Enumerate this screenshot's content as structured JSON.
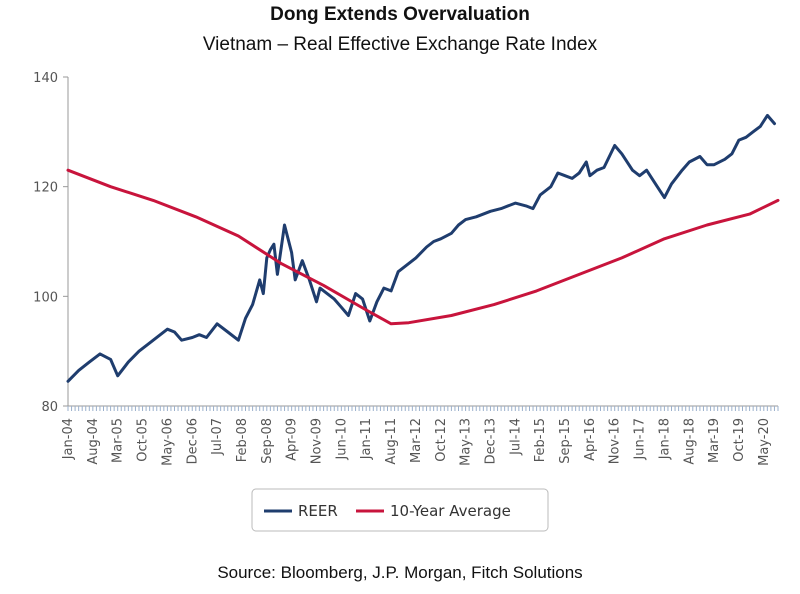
{
  "chart_data": {
    "type": "line",
    "title": "Dong Extends Overvaluation",
    "subtitle": "Vietnam – Real Effective Exchange Rate Index",
    "source": "Source: Bloomberg, J.P. Morgan, Fitch Solutions",
    "ylim": [
      80,
      140
    ],
    "yticks": [
      80,
      100,
      120,
      140
    ],
    "grid": false,
    "legend_position": "bottom-center",
    "xtick_labels": [
      "Jan-04",
      "Aug-04",
      "Mar-05",
      "Oct-05",
      "May-06",
      "Dec-06",
      "Jul-07",
      "Feb-08",
      "Sep-08",
      "Apr-09",
      "Nov-09",
      "Jun-10",
      "Jan-11",
      "Aug-11",
      "Mar-12",
      "Oct-12",
      "May-13",
      "Dec-13",
      "Jul-14",
      "Feb-15",
      "Sep-15",
      "Apr-16",
      "Nov-16",
      "Jun-17",
      "Jan-18",
      "Aug-18",
      "Mar-19",
      "Oct-19",
      "May-20"
    ],
    "series": [
      {
        "name": "REER",
        "color": "#1f3d6e",
        "points": [
          [
            "Jan-04",
            84.5
          ],
          [
            "Apr-04",
            86.5
          ],
          [
            "Jul-04",
            88
          ],
          [
            "Oct-04",
            89.5
          ],
          [
            "Jan-05",
            88.5
          ],
          [
            "Mar-05",
            85.5
          ],
          [
            "Jun-05",
            88
          ],
          [
            "Sep-05",
            90
          ],
          [
            "Dec-05",
            91.5
          ],
          [
            "Mar-06",
            93
          ],
          [
            "May-06",
            94
          ],
          [
            "Jul-06",
            93.5
          ],
          [
            "Sep-06",
            92
          ],
          [
            "Dec-06",
            92.5
          ],
          [
            "Feb-07",
            93
          ],
          [
            "Apr-07",
            92.5
          ],
          [
            "Jul-07",
            95
          ],
          [
            "Oct-07",
            93.5
          ],
          [
            "Jan-08",
            92
          ],
          [
            "Mar-08",
            96
          ],
          [
            "May-08",
            98.5
          ],
          [
            "Jul-08",
            103
          ],
          [
            "Aug-08",
            100.5
          ],
          [
            "Sep-08",
            107
          ],
          [
            "Oct-08",
            108.5
          ],
          [
            "Nov-08",
            109.5
          ],
          [
            "Dec-08",
            104
          ],
          [
            "Feb-09",
            113
          ],
          [
            "Apr-09",
            108
          ],
          [
            "May-09",
            103
          ],
          [
            "Jul-09",
            106.5
          ],
          [
            "Sep-09",
            103
          ],
          [
            "Nov-09",
            99
          ],
          [
            "Dec-09",
            101.5
          ],
          [
            "Feb-10",
            100.5
          ],
          [
            "Apr-10",
            99.5
          ],
          [
            "Jun-10",
            98
          ],
          [
            "Aug-10",
            96.5
          ],
          [
            "Oct-10",
            100.5
          ],
          [
            "Dec-10",
            99.5
          ],
          [
            "Feb-11",
            95.5
          ],
          [
            "Apr-11",
            99
          ],
          [
            "Jun-11",
            101.5
          ],
          [
            "Aug-11",
            101
          ],
          [
            "Oct-11",
            104.5
          ],
          [
            "Dec-11",
            105.5
          ],
          [
            "Mar-12",
            107
          ],
          [
            "Jun-12",
            109
          ],
          [
            "Aug-12",
            110
          ],
          [
            "Oct-12",
            110.5
          ],
          [
            "Jan-13",
            111.5
          ],
          [
            "Mar-13",
            113
          ],
          [
            "May-13",
            114
          ],
          [
            "Aug-13",
            114.5
          ],
          [
            "Dec-13",
            115.5
          ],
          [
            "Mar-14",
            116
          ],
          [
            "Jul-14",
            117
          ],
          [
            "Oct-14",
            116.5
          ],
          [
            "Dec-14",
            116
          ],
          [
            "Feb-15",
            118.5
          ],
          [
            "May-15",
            120
          ],
          [
            "Jul-15",
            122.5
          ],
          [
            "Sep-15",
            122
          ],
          [
            "Nov-15",
            121.5
          ],
          [
            "Jan-16",
            122.5
          ],
          [
            "Mar-16",
            124.5
          ],
          [
            "Apr-16",
            122
          ],
          [
            "Jun-16",
            123
          ],
          [
            "Aug-16",
            123.5
          ],
          [
            "Nov-16",
            127.5
          ],
          [
            "Jan-17",
            126
          ],
          [
            "Apr-17",
            123
          ],
          [
            "Jun-17",
            122
          ],
          [
            "Aug-17",
            123
          ],
          [
            "Nov-17",
            120
          ],
          [
            "Jan-18",
            118
          ],
          [
            "Mar-18",
            120.5
          ],
          [
            "Jun-18",
            123
          ],
          [
            "Aug-18",
            124.5
          ],
          [
            "Nov-18",
            125.5
          ],
          [
            "Jan-19",
            124
          ],
          [
            "Mar-19",
            124
          ],
          [
            "Jun-19",
            125
          ],
          [
            "Aug-19",
            126
          ],
          [
            "Oct-19",
            128.5
          ],
          [
            "Dec-19",
            129
          ],
          [
            "Feb-20",
            130
          ],
          [
            "Apr-20",
            131
          ],
          [
            "Jun-20",
            133
          ],
          [
            "Aug-20",
            131.5
          ]
        ]
      },
      {
        "name": "10-Year Average",
        "color": "#c8143c",
        "points": [
          [
            "Jan-04",
            123
          ],
          [
            "Jan-05",
            120
          ],
          [
            "Jan-06",
            117.5
          ],
          [
            "Jan-07",
            114.5
          ],
          [
            "Jan-08",
            111
          ],
          [
            "Jan-09",
            106
          ],
          [
            "Jan-10",
            102
          ],
          [
            "Jan-11",
            97.5
          ],
          [
            "Aug-11",
            95
          ],
          [
            "Jan-12",
            95.2
          ],
          [
            "Jan-13",
            96.5
          ],
          [
            "Jan-14",
            98.5
          ],
          [
            "Jan-15",
            101
          ],
          [
            "Jan-16",
            104
          ],
          [
            "Jan-17",
            107
          ],
          [
            "Jan-18",
            110.5
          ],
          [
            "Jan-19",
            113
          ],
          [
            "Jan-20",
            115
          ],
          [
            "Sep-20",
            117.5
          ]
        ]
      }
    ]
  }
}
